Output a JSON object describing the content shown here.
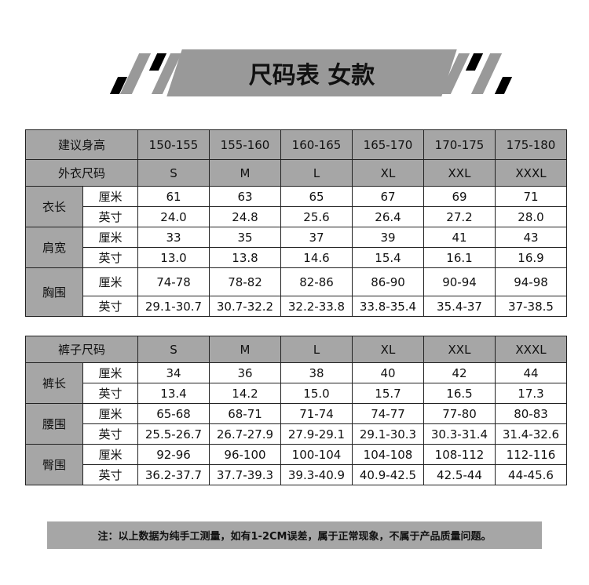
{
  "title": "尺码表 女款",
  "colors": {
    "header_gray": "#a6a6a6",
    "banner_gray": "#999999"
  },
  "top_table": {
    "height_label": "建议身高",
    "heights": [
      "150-155",
      "155-160",
      "160-165",
      "165-170",
      "170-175",
      "175-180"
    ],
    "size_label": "外衣尺码",
    "sizes": [
      "S",
      "M",
      "L",
      "XL",
      "XXL",
      "XXXL"
    ],
    "groups": [
      {
        "name": "衣长",
        "rows": [
          {
            "unit": "厘米",
            "values": [
              "61",
              "63",
              "65",
              "67",
              "69",
              "71"
            ]
          },
          {
            "unit": "英寸",
            "values": [
              "24.0",
              "24.8",
              "25.6",
              "26.4",
              "27.2",
              "28.0"
            ]
          }
        ]
      },
      {
        "name": "肩宽",
        "rows": [
          {
            "unit": "厘米",
            "values": [
              "33",
              "35",
              "37",
              "39",
              "41",
              "43"
            ]
          },
          {
            "unit": "英寸",
            "values": [
              "13.0",
              "13.8",
              "14.6",
              "15.4",
              "16.1",
              "16.9"
            ]
          }
        ]
      },
      {
        "name": "胸围",
        "rows": [
          {
            "unit": "厘米",
            "values": [
              "74-78",
              "78-82",
              "82-86",
              "86-90",
              "90-94",
              "94-98"
            ]
          },
          {
            "unit": "英寸",
            "values": [
              "29.1-30.7",
              "30.7-32.2",
              "32.2-33.8",
              "33.8-35.4",
              "35.4-37",
              "37-38.5"
            ]
          }
        ]
      }
    ]
  },
  "bottom_table": {
    "size_label": "裤子尺码",
    "sizes": [
      "S",
      "M",
      "L",
      "XL",
      "XXL",
      "XXXL"
    ],
    "groups": [
      {
        "name": "裤长",
        "rows": [
          {
            "unit": "厘米",
            "values": [
              "34",
              "36",
              "38",
              "40",
              "42",
              "44"
            ]
          },
          {
            "unit": "英寸",
            "values": [
              "13.4",
              "14.2",
              "15.0",
              "15.7",
              "16.5",
              "17.3"
            ]
          }
        ]
      },
      {
        "name": "腰围",
        "rows": [
          {
            "unit": "厘米",
            "values": [
              "65-68",
              "68-71",
              "71-74",
              "74-77",
              "77-80",
              "80-83"
            ]
          },
          {
            "unit": "英寸",
            "values": [
              "25.5-26.7",
              "26.7-27.9",
              "27.9-29.1",
              "29.1-30.3",
              "30.3-31.4",
              "31.4-32.6"
            ]
          }
        ]
      },
      {
        "name": "臀围",
        "rows": [
          {
            "unit": "厘米",
            "values": [
              "92-96",
              "96-100",
              "100-104",
              "104-108",
              "108-112",
              "112-116"
            ]
          },
          {
            "unit": "英寸",
            "values": [
              "36.2-37.7",
              "37.7-39.3",
              "39.3-40.9",
              "40.9-42.5",
              "42.5-44",
              "44-45.6"
            ]
          }
        ]
      }
    ]
  },
  "note": "注：以上数据为纯手工测量，如有1-2CM误差，属于正常现象，不属于产品质量问题。"
}
